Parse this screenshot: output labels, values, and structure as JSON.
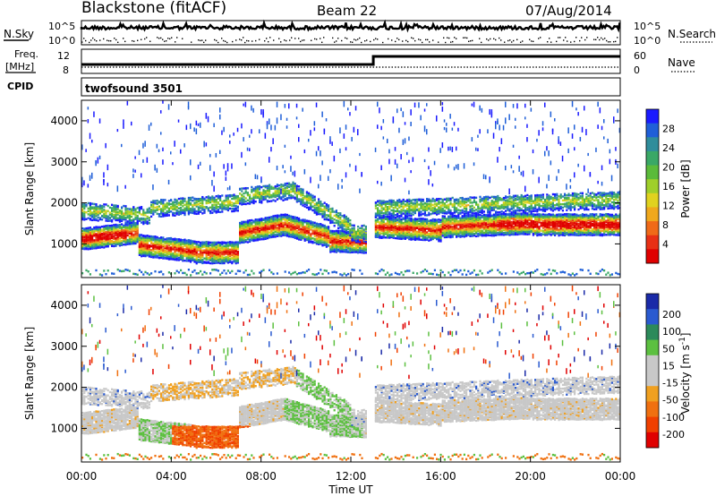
{
  "header": {
    "station": "Blackstone (fitACF)",
    "beam": "Beam 22",
    "date": "07/Aug/2014"
  },
  "panels": {
    "nsky": {
      "label": "N.Sky",
      "ticks": [
        "10^5",
        "10^0"
      ]
    },
    "nsearch": {
      "label": "N.Search",
      "ticks": [
        "10^5",
        "10^0"
      ]
    },
    "freq": {
      "label_top": "Freq.",
      "label_unit": "[MHz]",
      "ticks": [
        "12",
        "8"
      ]
    },
    "nave": {
      "label": "Nave",
      "ticks": [
        "60",
        "0"
      ]
    },
    "cpid": {
      "label": "CPID",
      "value": "twofsound 3501"
    }
  },
  "chart_data": [
    {
      "type": "heatmap",
      "name": "power",
      "ylabel": "Slant Range [km]",
      "xlabel": "",
      "yticks": [
        "1000",
        "2000",
        "3000",
        "4000"
      ],
      "ylim": [
        180,
        4500
      ],
      "colorbar": {
        "label": "Power [dB]",
        "ticks": [
          "4",
          "8",
          "12",
          "16",
          "20",
          "24",
          "28"
        ],
        "colors": [
          "#1a1aff",
          "#1f5fd8",
          "#2f8d9b",
          "#3aa866",
          "#5bbb3a",
          "#9fcf2a",
          "#e0d21f",
          "#f0a81c",
          "#f06a18",
          "#e83015",
          "#e00000"
        ]
      }
    },
    {
      "type": "heatmap",
      "name": "velocity",
      "ylabel": "Slant Range [km]",
      "xlabel": "Time UT",
      "xticks": [
        "00:00",
        "04:00",
        "08:00",
        "12:00",
        "16:00",
        "20:00",
        "00:00"
      ],
      "yticks": [
        "1000",
        "2000",
        "3000",
        "4000"
      ],
      "ylim": [
        180,
        4500
      ],
      "colorbar": {
        "label": "Velocity [m s^-1]",
        "ticks": [
          "200",
          "100",
          "50",
          "15",
          "-15",
          "-50",
          "-100",
          "-200"
        ],
        "colors": [
          "#1a2aa8",
          "#2a5ad0",
          "#2c8a5a",
          "#5cc040",
          "#c8c8c8",
          "#c8c8c8",
          "#f0a020",
          "#f07010",
          "#f04000",
          "#e00000"
        ]
      }
    }
  ]
}
